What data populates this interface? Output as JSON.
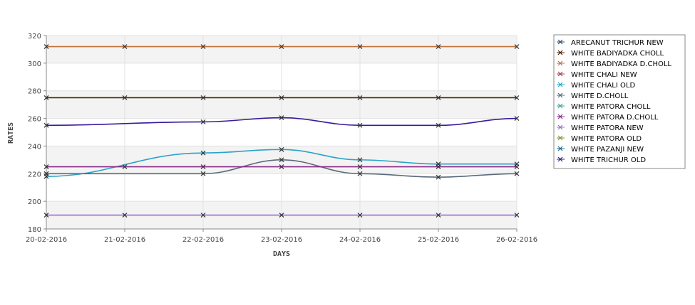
{
  "chart_data": {
    "type": "line",
    "xlabel": "DAYS",
    "ylabel": "RATES",
    "ylim": [
      180,
      320
    ],
    "yticks": [
      180,
      200,
      220,
      240,
      260,
      280,
      300,
      320
    ],
    "categories": [
      "20-02-2016",
      "21-02-2016",
      "22-02-2016",
      "23-02-2016",
      "24-02-2016",
      "25-02-2016",
      "26-02-2016"
    ],
    "grid": true,
    "legend_position": "right",
    "series": [
      {
        "name": "ARECANUT TRICHUR NEW",
        "color": "#2f4f6f",
        "values": [
          null,
          null,
          null,
          null,
          null,
          null,
          null
        ]
      },
      {
        "name": "WHITE BADIYADKA CHOLL",
        "color": "#4a1f00",
        "values": [
          275,
          275,
          275,
          275,
          275,
          275,
          275
        ]
      },
      {
        "name": "WHITE BADIYADKA D.CHOLL",
        "color": "#c0703a",
        "values": [
          312,
          312,
          312,
          312,
          312,
          312,
          312
        ]
      },
      {
        "name": "WHITE CHALI NEW",
        "color": "#b03a5a",
        "values": [
          null,
          null,
          null,
          null,
          null,
          null,
          null
        ]
      },
      {
        "name": "WHITE CHALI OLD",
        "color": "#2aa3c8",
        "values": [
          218,
          null,
          235,
          237.5,
          230,
          227,
          227
        ]
      },
      {
        "name": "WHITE D.CHOLL",
        "color": "#5a6a7a",
        "values": [
          220,
          null,
          220,
          230,
          220,
          217.5,
          220
        ]
      },
      {
        "name": "WHITE PATORA CHOLL",
        "color": "#3aa89a",
        "values": [
          null,
          null,
          null,
          null,
          null,
          null,
          null
        ]
      },
      {
        "name": "WHITE PATORA D.CHOLL",
        "color": "#8a2a8a",
        "values": [
          225,
          225,
          225,
          225,
          225,
          225,
          225
        ]
      },
      {
        "name": "WHITE PATORA NEW",
        "color": "#a26ad0",
        "values": [
          190,
          190,
          190,
          190,
          190,
          190,
          190
        ]
      },
      {
        "name": "WHITE PATORA OLD",
        "color": "#7a9a2a",
        "values": [
          null,
          null,
          null,
          null,
          null,
          null,
          null
        ]
      },
      {
        "name": "WHITE PAZANJI NEW",
        "color": "#1f6a8a",
        "values": [
          null,
          null,
          null,
          null,
          null,
          null,
          null
        ]
      },
      {
        "name": "WHITE TRICHUR OLD",
        "color": "#3a1a9a",
        "values": [
          255,
          null,
          257.5,
          260.5,
          255,
          255,
          260
        ]
      }
    ]
  }
}
